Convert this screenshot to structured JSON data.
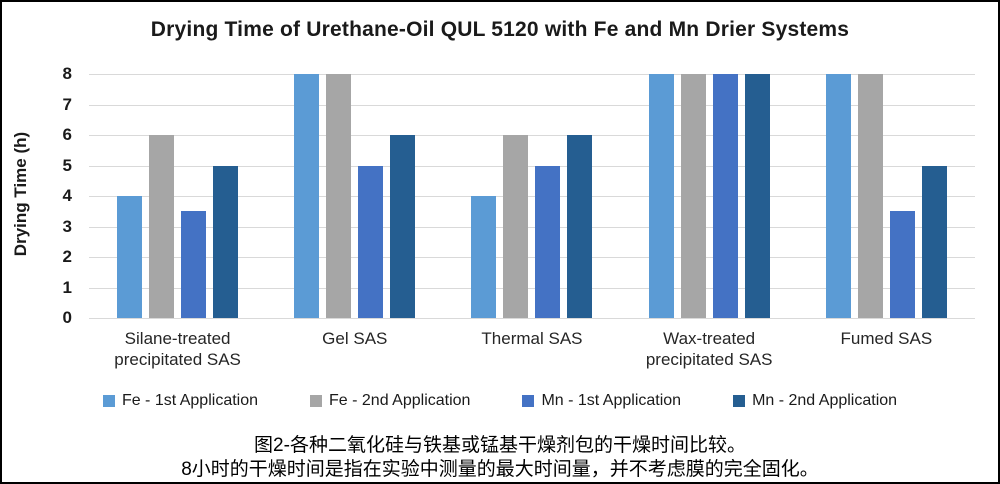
{
  "chart_data": {
    "type": "bar",
    "title": "Drying Time of Urethane-Oil QUL 5120 with Fe and Mn Drier Systems",
    "xlabel": "",
    "ylabel": "Drying Time (h)",
    "ylim": [
      0,
      8
    ],
    "yticks": [
      0,
      1,
      2,
      3,
      4,
      5,
      6,
      7,
      8
    ],
    "grid": true,
    "legend_position": "bottom",
    "categories": [
      "Silane-treated precipitated SAS",
      "Gel SAS",
      "Thermal SAS",
      "Wax-treated precipitated SAS",
      "Fumed SAS"
    ],
    "series": [
      {
        "name": "Fe - 1st Application",
        "color": "#5B9BD5",
        "values": [
          4,
          8,
          4,
          8,
          8
        ]
      },
      {
        "name": "Fe - 2nd Application",
        "color": "#A6A6A6",
        "values": [
          6,
          8,
          6,
          8,
          8
        ]
      },
      {
        "name": "Mn - 1st Application",
        "color": "#4472C4",
        "values": [
          3.5,
          5,
          5,
          8,
          3.5
        ]
      },
      {
        "name": "Mn - 2nd Application",
        "color": "#255E91",
        "values": [
          5,
          6,
          6,
          8,
          5
        ]
      }
    ]
  },
  "caption": {
    "line1": "图2-各种二氧化硅与铁基或锰基干燥剂包的干燥时间比较。",
    "line2": "8小时的干燥时间是指在实验中测量的最大时间量，并不考虑膜的完全固化。"
  }
}
